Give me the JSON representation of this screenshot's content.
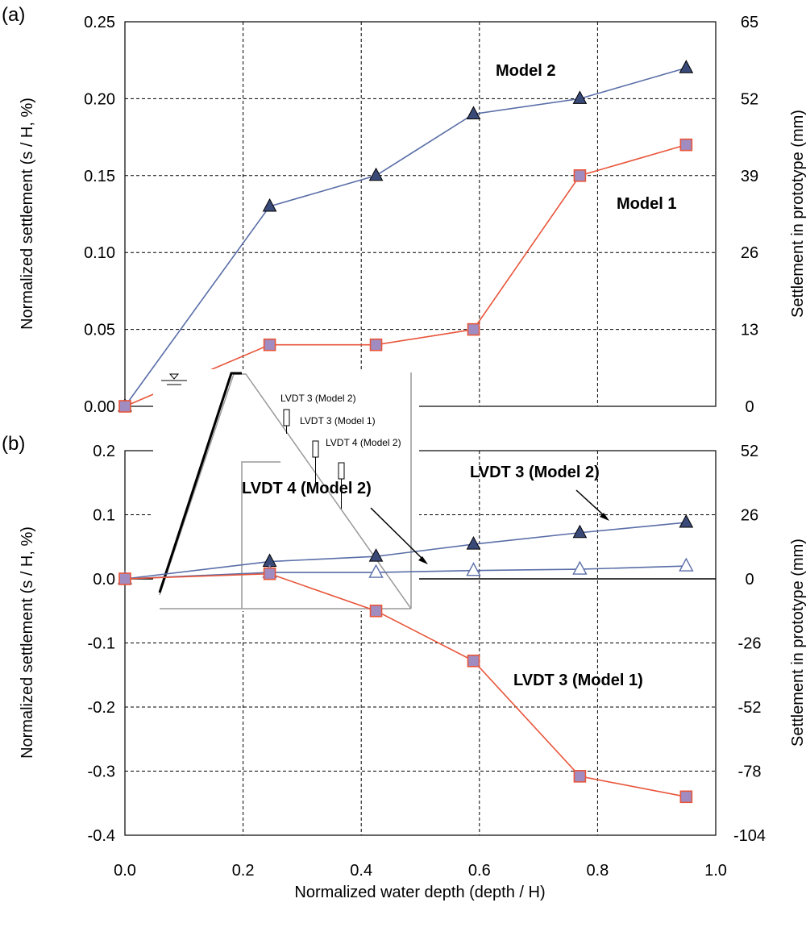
{
  "chart_data": [
    {
      "type": "line",
      "panel": "(a)",
      "xlabel": "",
      "ylabel": "Normalized settlement  (s / H, %)",
      "y2label": "Settlement in prototype  (mm)",
      "xlim": [
        0.0,
        1.0
      ],
      "ylim": [
        0.0,
        0.25
      ],
      "y2lim": [
        0,
        65
      ],
      "x_ticks": [
        "0.0",
        "0.2",
        "0.4",
        "0.6",
        "0.8",
        "1.0"
      ],
      "y_ticks": [
        "0.00",
        "0.05",
        "0.10",
        "0.15",
        "0.20",
        "0.25"
      ],
      "y2_ticks": [
        "0",
        "13",
        "26",
        "39",
        "52",
        "65"
      ],
      "grid": true,
      "series": [
        {
          "name": "Model 2",
          "color": "#5a6ea8",
          "marker": "triangle-filled",
          "marker_color": "#3a4a78",
          "x": [
            0.0,
            0.245,
            0.425,
            0.59,
            0.77,
            0.95
          ],
          "y": [
            0.0,
            0.13,
            0.15,
            0.19,
            0.2,
            0.22
          ]
        },
        {
          "name": "Model 1",
          "color": "#e8553a",
          "marker": "square-filled",
          "marker_color": "#a08cc0",
          "x": [
            0.0,
            0.245,
            0.425,
            0.59,
            0.77,
            0.95
          ],
          "y": [
            0.0,
            0.04,
            0.04,
            0.05,
            0.15,
            0.17
          ]
        }
      ]
    },
    {
      "type": "line",
      "panel": "(b)",
      "xlabel": "Normalized water depth (depth / H)",
      "ylabel": "Normalized settlement  (s / H, %)",
      "y2label": "Settlement in prototype  (mm)",
      "xlim": [
        0.0,
        1.0
      ],
      "ylim": [
        -0.4,
        0.2
      ],
      "y2lim": [
        -104,
        52
      ],
      "x_ticks": [
        "0.0",
        "0.2",
        "0.4",
        "0.6",
        "0.8",
        "1.0"
      ],
      "y_ticks": [
        "-0.4",
        "-0.3",
        "-0.2",
        "-0.1",
        "0.0",
        "0.1",
        "0.2"
      ],
      "y2_ticks": [
        "-104",
        "-78",
        "-52",
        "-26",
        "0",
        "26",
        "52"
      ],
      "grid": true,
      "series": [
        {
          "name": "LVDT 3 (Model 2)",
          "color": "#5a6ea8",
          "marker": "triangle-filled",
          "marker_color": "#3a4a78",
          "x": [
            0.0,
            0.245,
            0.425,
            0.59,
            0.77,
            0.95
          ],
          "y": [
            0.0,
            0.027,
            0.035,
            0.054,
            0.072,
            0.088
          ]
        },
        {
          "name": "LVDT 4 (Model 2)",
          "color": "#5a6ea8",
          "marker": "triangle-open",
          "marker_color": "#5a6ea8",
          "x": [
            0.0,
            0.245,
            0.425,
            0.59,
            0.77,
            0.95
          ],
          "y": [
            0.0,
            0.01,
            0.01,
            0.013,
            0.015,
            0.02
          ]
        },
        {
          "name": "LVDT 3 (Model 1)",
          "color": "#e8553a",
          "marker": "square-filled",
          "marker_color": "#a08cc0",
          "x": [
            0.0,
            0.245,
            0.425,
            0.59,
            0.77,
            0.95
          ],
          "y": [
            0.0,
            0.008,
            -0.05,
            -0.128,
            -0.308,
            -0.34
          ]
        }
      ],
      "inset": {
        "labels": [
          "LVDT 3 (Model 2)",
          "LVDT 3 (Model 1)",
          "LVDT 4 (Model 2)"
        ]
      }
    }
  ]
}
